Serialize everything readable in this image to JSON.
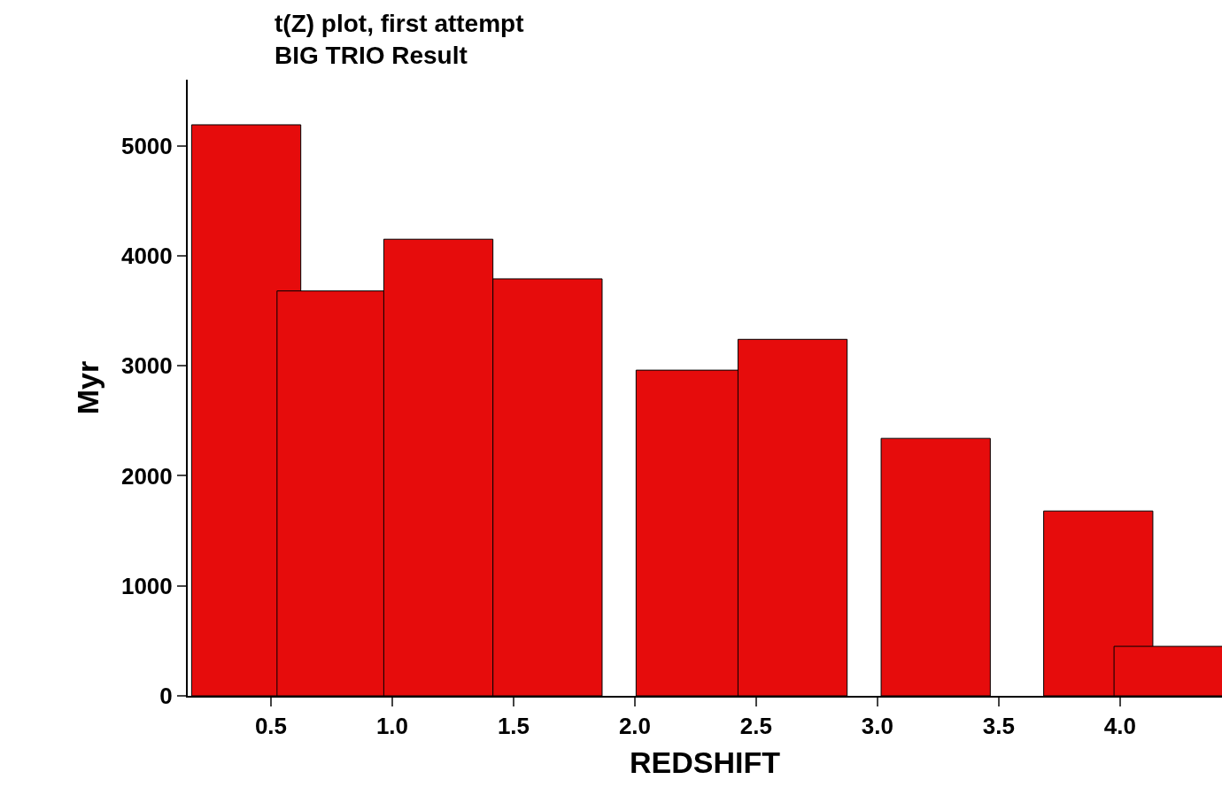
{
  "chart_data": {
    "type": "bar",
    "title": "t(Z) plot, first attempt\nBIG TRIO Result",
    "xlabel": "REDSHIFT",
    "ylabel": "Myr",
    "x": [
      0.398,
      0.75,
      1.19,
      1.64,
      2.23,
      2.65,
      3.24,
      3.91,
      4.2
    ],
    "values": [
      5190,
      3680,
      4150,
      3790,
      2960,
      3240,
      2340,
      1680,
      450
    ],
    "color": "#e60c0c",
    "xlim": [
      0.157,
      4.42
    ],
    "xticks": [
      {
        "value": 0.5,
        "label": "0.5"
      },
      {
        "value": 1.0,
        "label": "1.0"
      },
      {
        "value": 1.5,
        "label": "1.5"
      },
      {
        "value": 2.0,
        "label": "2.0"
      },
      {
        "value": 2.5,
        "label": "2.5"
      },
      {
        "value": 3.0,
        "label": "3.0"
      },
      {
        "value": 3.5,
        "label": "3.5"
      },
      {
        "value": 4.0,
        "label": "4.0"
      }
    ],
    "ylim": [
      0,
      5600
    ],
    "yticks": [
      0,
      1000,
      2000,
      3000,
      4000,
      5000
    ]
  }
}
